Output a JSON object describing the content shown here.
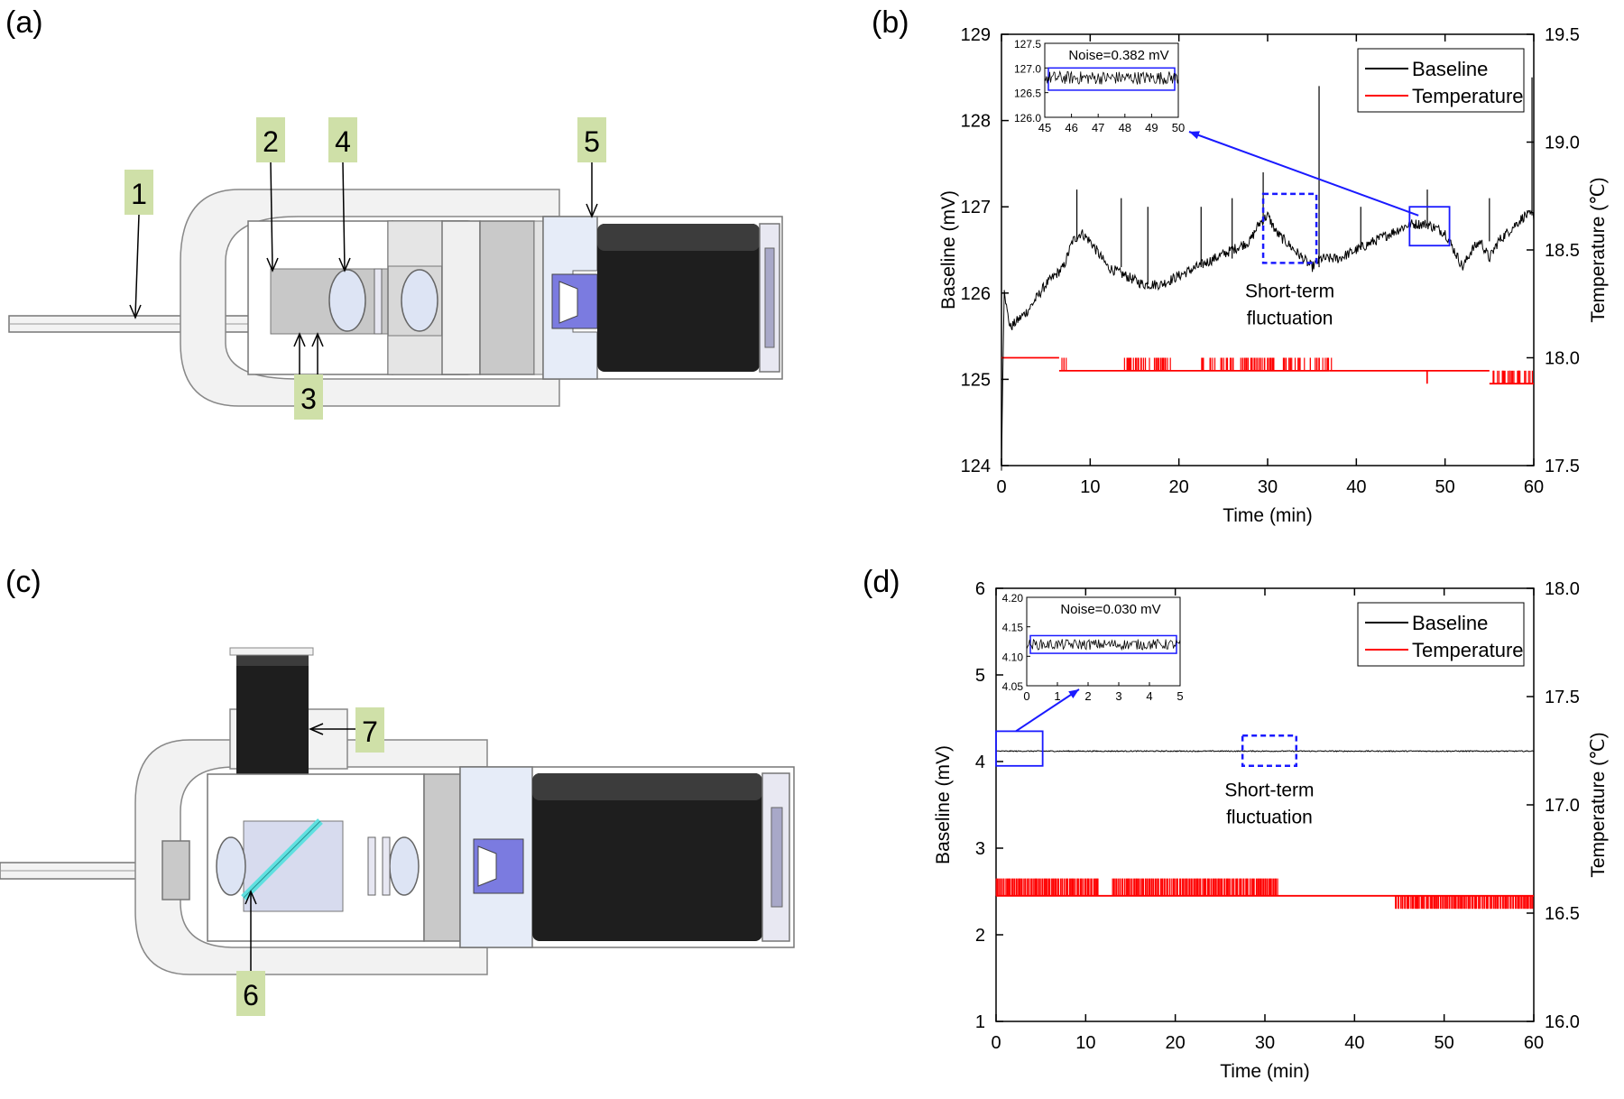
{
  "panels": {
    "a": {
      "label": "(a)",
      "callouts": [
        "1",
        "2",
        "4",
        "5",
        "3"
      ]
    },
    "b": {
      "label": "(b)",
      "annotation": [
        "Short-term",
        "fluctuation"
      ],
      "inset_noise_label": "Noise=0.382 mV",
      "inset_y_ticks": [
        "127.5",
        "127.0",
        "126.5",
        "126.0"
      ],
      "inset_x_ticks": [
        "45",
        "46",
        "47",
        "48",
        "49",
        "50"
      ]
    },
    "c": {
      "label": "(c)",
      "callouts": [
        "7",
        "6"
      ]
    },
    "d": {
      "label": "(d)",
      "annotation": [
        "Short-term",
        "fluctuation"
      ],
      "inset_noise_label": "Noise=0.030 mV",
      "inset_y_ticks": [
        "4.20",
        "4.15",
        "4.10",
        "4.05"
      ],
      "inset_x_ticks": [
        "0",
        "1",
        "2",
        "3",
        "4",
        "5"
      ]
    }
  },
  "colors": {
    "callout_bg": "#cfe0a8",
    "baseline": "#000000",
    "temperature": "#ff0000",
    "highlight": "#1a1aff",
    "mirror": "#5fe0e0",
    "lens": "#dde4f4",
    "dark_body": "#1e1e1e",
    "blue_part": "#7b7be0"
  },
  "chart_data": [
    {
      "type": "line",
      "panel": "b",
      "xlabel": "Time (min)",
      "ylabel": "Baseline (mV)",
      "y2label": "Temperature (℃)",
      "xlim": [
        0,
        60
      ],
      "ylim": [
        124,
        129
      ],
      "y2lim": [
        17.5,
        19.5
      ],
      "x_ticks": [
        "0",
        "10",
        "20",
        "30",
        "40",
        "50",
        "60"
      ],
      "y_ticks": [
        "124",
        "125",
        "126",
        "127",
        "128",
        "129"
      ],
      "y2_ticks": [
        "17.5",
        "18.0",
        "18.5",
        "19.0",
        "19.5"
      ],
      "legend_position": "top-right",
      "series": [
        {
          "name": "Baseline",
          "x": [
            0,
            0.3,
            0.6,
            1,
            2,
            3,
            5,
            7,
            8,
            9,
            10,
            12,
            14,
            16,
            18,
            20,
            22,
            24,
            26,
            28,
            29,
            30,
            31,
            32,
            33,
            34,
            35,
            36,
            38,
            40,
            42,
            44,
            46,
            48,
            50,
            51,
            52,
            53,
            54,
            55,
            56,
            58,
            59,
            60
          ],
          "values": [
            124.0,
            126.1,
            125.8,
            125.6,
            125.7,
            125.8,
            126.1,
            126.3,
            126.6,
            126.7,
            126.6,
            126.3,
            126.2,
            126.1,
            126.1,
            126.2,
            126.3,
            126.4,
            126.5,
            126.6,
            126.8,
            126.9,
            126.7,
            126.6,
            126.5,
            126.4,
            126.3,
            126.4,
            126.4,
            126.5,
            126.6,
            126.7,
            126.8,
            126.8,
            126.7,
            126.5,
            126.3,
            126.5,
            126.6,
            126.4,
            126.6,
            126.8,
            126.9,
            126.9
          ],
          "spikes": [
            [
              8.5,
              127.2
            ],
            [
              13.5,
              127.1
            ],
            [
              16.5,
              127.0
            ],
            [
              22.5,
              127.0
            ],
            [
              26,
              127.1
            ],
            [
              29.5,
              127.4
            ],
            [
              35.8,
              128.4
            ],
            [
              40.5,
              127.0
            ],
            [
              48,
              127.2
            ],
            [
              55,
              127.1
            ],
            [
              59.8,
              128.5
            ]
          ]
        },
        {
          "name": "Temperature",
          "axis": "y2",
          "levels": [
            18.0,
            17.94,
            17.88,
            17.81
          ],
          "segments": [
            [
              0,
              6.5,
              18.0
            ],
            [
              6.5,
              37,
              17.94
            ],
            [
              37,
              55,
              17.94
            ],
            [
              55,
              60,
              17.88
            ]
          ],
          "flicker_ranges": [
            [
              6.6,
              7.3
            ],
            [
              13.2,
              19.2
            ],
            [
              22.5,
              34.2
            ],
            [
              34.8,
              37.2
            ],
            [
              47.9,
              48.1
            ],
            [
              54.8,
              60
            ]
          ]
        }
      ],
      "inset": {
        "xlim": [
          45,
          50
        ],
        "ylim": [
          126.0,
          127.5
        ],
        "noise_band": [
          126.55,
          127.0
        ],
        "level": 126.8
      }
    },
    {
      "type": "line",
      "panel": "d",
      "xlabel": "Time (min)",
      "ylabel": "Baseline (mV)",
      "y2label": "Temperature (℃)",
      "xlim": [
        0,
        60
      ],
      "ylim": [
        1,
        6
      ],
      "y2lim": [
        16.0,
        18.0
      ],
      "x_ticks": [
        "0",
        "10",
        "20",
        "30",
        "40",
        "50",
        "60"
      ],
      "y_ticks": [
        "1",
        "2",
        "3",
        "4",
        "5",
        "6"
      ],
      "y2_ticks": [
        "16.0",
        "16.5",
        "17.0",
        "17.5",
        "18.0"
      ],
      "legend_position": "top-right",
      "series": [
        {
          "name": "Baseline",
          "x": [
            0,
            60
          ],
          "values": [
            4.12,
            4.12
          ]
        },
        {
          "name": "Temperature",
          "axis": "y2",
          "levels": [
            16.66,
            16.58,
            16.52
          ],
          "flicker_ranges": [
            [
              0,
              11.5
            ],
            [
              13,
              31.5
            ],
            [
              44.5,
              60
            ]
          ],
          "flat_level": 16.58
        }
      ],
      "inset": {
        "xlim": [
          0,
          5
        ],
        "ylim": [
          4.05,
          4.2
        ],
        "noise_band": [
          4.105,
          4.135
        ],
        "level": 4.12
      }
    }
  ]
}
